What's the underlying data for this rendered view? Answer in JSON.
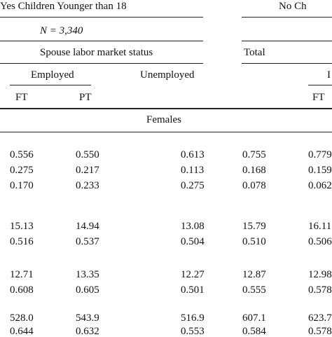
{
  "table": {
    "group_left": "Yes Children Younger than 18",
    "group_right": "No Ch",
    "n_label": "N = 3,340",
    "spouse_status": "Spouse labor market status",
    "total": "Total",
    "right_partial_header": "I",
    "employed": "Employed",
    "unemployed": "Unemployed",
    "col_ft": "FT",
    "col_pt": "PT",
    "col_ft_right": "FT",
    "section": "Females",
    "rows": [
      [
        "0.556",
        "0.550",
        "0.613",
        "0.755",
        "0.779"
      ],
      [
        "0.275",
        "0.217",
        "0.113",
        "0.168",
        "0.159"
      ],
      [
        "0.170",
        "0.233",
        "0.275",
        "0.078",
        "0.062"
      ],
      [
        "15.13",
        "14.94",
        "13.08",
        "15.79",
        "16.11"
      ],
      [
        "0.516",
        "0.537",
        "0.504",
        "0.510",
        "0.506"
      ],
      [
        "12.71",
        "13.35",
        "12.27",
        "12.87",
        "12.98"
      ],
      [
        "0.608",
        "0.605",
        "0.501",
        "0.555",
        "0.578"
      ],
      [
        "528.0",
        "543.9",
        "516.9",
        "607.1",
        "623.7"
      ],
      [
        "0.644",
        "0.632",
        "0.553",
        "0.584",
        "0.578"
      ]
    ]
  }
}
